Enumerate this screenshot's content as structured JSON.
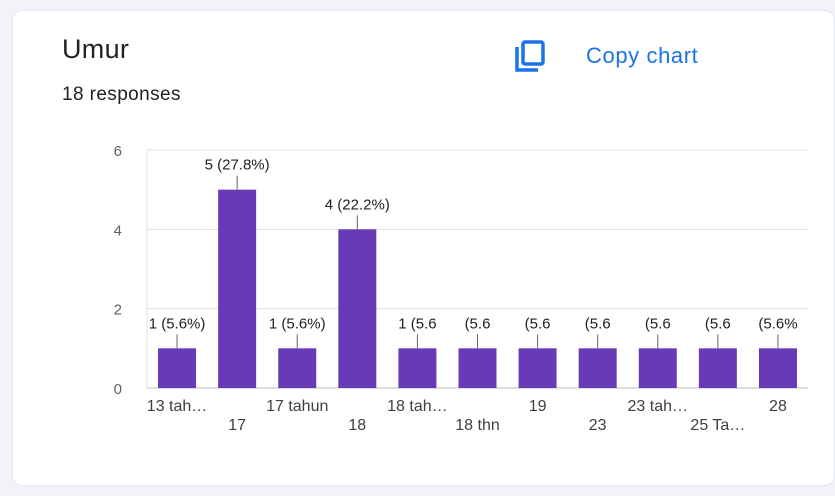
{
  "question": {
    "title": "Umur",
    "responses": "18 responses"
  },
  "actions": {
    "copy_chart_label": "Copy chart",
    "copy_icon": "copy-icon"
  },
  "colors": {
    "bar": "#673ab7",
    "accent": "#1a73e8",
    "text": "#202124",
    "grid": "#e0e0e0"
  },
  "chart_data": {
    "type": "bar",
    "title": "",
    "xlabel": "",
    "ylabel": "",
    "ylim": [
      0,
      6
    ],
    "yticks": [
      0,
      2,
      4,
      6
    ],
    "categories": [
      "13 tah…",
      "17",
      "17 tahun",
      "18",
      "18 tah…",
      "18 thn",
      "19",
      "23",
      "23 tah…",
      "25 Ta…",
      "28"
    ],
    "values": [
      1,
      5,
      1,
      4,
      1,
      1,
      1,
      1,
      1,
      1,
      1
    ],
    "data_labels": [
      "1 (5.6%)",
      "5 (27.8%)",
      "1 (5.6%)",
      "4 (22.2%)",
      "1 (5.6",
      "(5.6",
      "(5.6",
      "(5.6",
      "(5.6",
      "(5.6",
      "(5.6%"
    ]
  }
}
